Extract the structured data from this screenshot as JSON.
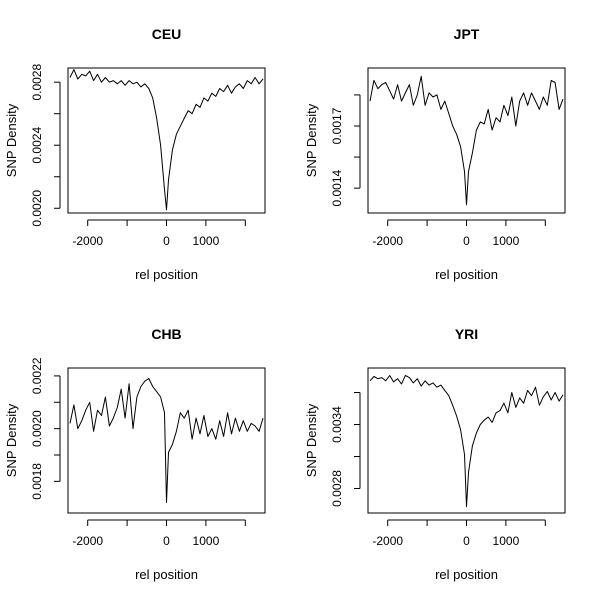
{
  "chart_data": [
    {
      "type": "line",
      "title": "CEU",
      "xlabel": "rel position",
      "ylabel": "SNP Density",
      "xlim": [
        -2500,
        2500
      ],
      "ylim": [
        0.00197,
        0.00289
      ],
      "xticks": [
        -2000,
        -1000,
        0,
        1000,
        2000
      ],
      "xtick_labels": [
        "-2000",
        "",
        "0",
        "1000",
        ""
      ],
      "yticks": [
        0.002,
        0.0022,
        0.0024,
        0.0026,
        0.0028
      ],
      "ytick_labels": [
        "0.0020",
        "",
        "0.0024",
        "",
        "0.0028"
      ],
      "grid": false,
      "legend": "none",
      "series": [
        {
          "x": [
            -2450,
            -2350,
            -2250,
            -2150,
            -2050,
            -1950,
            -1850,
            -1750,
            -1650,
            -1550,
            -1450,
            -1350,
            -1250,
            -1150,
            -1050,
            -950,
            -850,
            -750,
            -650,
            -550,
            -450,
            -350,
            -250,
            -150,
            -50,
            0,
            50,
            150,
            250,
            350,
            450,
            550,
            650,
            750,
            850,
            950,
            1050,
            1150,
            1250,
            1350,
            1450,
            1550,
            1650,
            1750,
            1850,
            1950,
            2050,
            2150,
            2250,
            2350,
            2450
          ],
          "y": [
            0.00283,
            0.00288,
            0.00282,
            0.00285,
            0.00284,
            0.00287,
            0.00281,
            0.00285,
            0.0028,
            0.00283,
            0.0028,
            0.00281,
            0.00279,
            0.00281,
            0.00278,
            0.00281,
            0.00279,
            0.0028,
            0.00277,
            0.00279,
            0.00276,
            0.0027,
            0.00257,
            0.0024,
            0.00212,
            0.00199,
            0.00218,
            0.00237,
            0.00247,
            0.00252,
            0.00257,
            0.00262,
            0.0026,
            0.00266,
            0.00264,
            0.0027,
            0.00268,
            0.00273,
            0.00271,
            0.00276,
            0.00274,
            0.00278,
            0.00273,
            0.00277,
            0.00279,
            0.00276,
            0.00281,
            0.00279,
            0.00283,
            0.00279,
            0.00282
          ]
        }
      ]
    },
    {
      "type": "line",
      "title": "JPT",
      "xlabel": "rel position",
      "ylabel": "SNP Density",
      "xlim": [
        -2500,
        2500
      ],
      "ylim": [
        0.00128,
        0.00198
      ],
      "xticks": [
        -2000,
        -1000,
        0,
        1000,
        2000
      ],
      "xtick_labels": [
        "-2000",
        "",
        "0",
        "1000",
        ""
      ],
      "yticks": [
        0.0014,
        0.00155,
        0.0017,
        0.00185
      ],
      "ytick_labels": [
        "0.0014",
        "",
        "0.0017",
        ""
      ],
      "grid": false,
      "legend": "none",
      "series": [
        {
          "x": [
            -2450,
            -2350,
            -2250,
            -2150,
            -2050,
            -1950,
            -1850,
            -1750,
            -1650,
            -1550,
            -1450,
            -1350,
            -1250,
            -1150,
            -1050,
            -950,
            -850,
            -750,
            -650,
            -550,
            -450,
            -350,
            -250,
            -150,
            -50,
            0,
            50,
            150,
            250,
            350,
            450,
            550,
            650,
            750,
            850,
            950,
            1050,
            1150,
            1250,
            1350,
            1450,
            1550,
            1650,
            1750,
            1850,
            1950,
            2050,
            2150,
            2250,
            2350,
            2450
          ],
          "y": [
            0.00182,
            0.00192,
            0.00188,
            0.0019,
            0.00191,
            0.00187,
            0.00183,
            0.0019,
            0.00182,
            0.00186,
            0.0019,
            0.0018,
            0.00185,
            0.00194,
            0.0018,
            0.00186,
            0.00184,
            0.00185,
            0.00178,
            0.00182,
            0.00176,
            0.0017,
            0.00166,
            0.0016,
            0.00148,
            0.00132,
            0.00148,
            0.00157,
            0.00168,
            0.00172,
            0.00171,
            0.00178,
            0.00168,
            0.00174,
            0.00172,
            0.0018,
            0.00175,
            0.00184,
            0.0017,
            0.00182,
            0.00186,
            0.0018,
            0.00186,
            0.00182,
            0.00178,
            0.00184,
            0.0018,
            0.00192,
            0.00191,
            0.00178,
            0.00183
          ]
        }
      ]
    },
    {
      "type": "line",
      "title": "CHB",
      "xlabel": "rel position",
      "ylabel": "SNP Density",
      "xlim": [
        -2500,
        2500
      ],
      "ylim": [
        0.00168,
        0.00223
      ],
      "xticks": [
        -2000,
        -1000,
        0,
        1000,
        2000
      ],
      "xtick_labels": [
        "-2000",
        "",
        "0",
        "1000",
        ""
      ],
      "yticks": [
        0.0018,
        0.0019,
        0.002,
        0.0021,
        0.0022
      ],
      "ytick_labels": [
        "0.0018",
        "",
        "0.0020",
        "",
        "0.0022"
      ],
      "grid": false,
      "legend": "none",
      "series": [
        {
          "x": [
            -2450,
            -2350,
            -2250,
            -2150,
            -2050,
            -1950,
            -1850,
            -1750,
            -1650,
            -1550,
            -1450,
            -1350,
            -1250,
            -1150,
            -1050,
            -950,
            -850,
            -750,
            -650,
            -550,
            -450,
            -350,
            -250,
            -150,
            -50,
            0,
            50,
            150,
            250,
            350,
            450,
            550,
            650,
            750,
            850,
            950,
            1050,
            1150,
            1250,
            1350,
            1450,
            1550,
            1650,
            1750,
            1850,
            1950,
            2050,
            2150,
            2250,
            2350,
            2450
          ],
          "y": [
            0.00202,
            0.00209,
            0.002,
            0.00203,
            0.00207,
            0.0021,
            0.00199,
            0.00207,
            0.00205,
            0.00212,
            0.00201,
            0.00204,
            0.00208,
            0.00215,
            0.00204,
            0.00217,
            0.002,
            0.00212,
            0.00216,
            0.00218,
            0.00219,
            0.00216,
            0.00214,
            0.00212,
            0.00206,
            0.00172,
            0.00191,
            0.00194,
            0.00199,
            0.00206,
            0.00204,
            0.00207,
            0.00196,
            0.00204,
            0.00198,
            0.00205,
            0.00197,
            0.002,
            0.00196,
            0.00203,
            0.00197,
            0.00206,
            0.00198,
            0.00204,
            0.00199,
            0.00203,
            0.00199,
            0.00202,
            0.00201,
            0.00199,
            0.00204
          ]
        }
      ]
    },
    {
      "type": "line",
      "title": "YRI",
      "xlabel": "rel position",
      "ylabel": "SNP Density",
      "xlim": [
        -2500,
        2500
      ],
      "ylim": [
        0.00257,
        0.00393
      ],
      "xticks": [
        -2000,
        -1000,
        0,
        1000,
        2000
      ],
      "xtick_labels": [
        "-2000",
        "",
        "0",
        "1000",
        ""
      ],
      "yticks": [
        0.0028,
        0.0031,
        0.0034,
        0.0037
      ],
      "ytick_labels": [
        "0.0028",
        "",
        "0.0034",
        ""
      ],
      "grid": false,
      "legend": "none",
      "series": [
        {
          "x": [
            -2450,
            -2350,
            -2250,
            -2150,
            -2050,
            -1950,
            -1850,
            -1750,
            -1650,
            -1550,
            -1450,
            -1350,
            -1250,
            -1150,
            -1050,
            -950,
            -850,
            -750,
            -650,
            -550,
            -450,
            -350,
            -250,
            -150,
            -50,
            0,
            50,
            150,
            250,
            350,
            450,
            550,
            650,
            750,
            850,
            950,
            1050,
            1150,
            1250,
            1350,
            1450,
            1550,
            1650,
            1750,
            1850,
            1950,
            2050,
            2150,
            2250,
            2350,
            2450
          ],
          "y": [
            0.00381,
            0.00385,
            0.00383,
            0.00384,
            0.00381,
            0.00386,
            0.0038,
            0.00383,
            0.00378,
            0.00386,
            0.00384,
            0.00379,
            0.00383,
            0.00376,
            0.00381,
            0.00377,
            0.00379,
            0.00375,
            0.00377,
            0.00372,
            0.00367,
            0.00358,
            0.00348,
            0.00335,
            0.00312,
            0.00263,
            0.00295,
            0.0032,
            0.00332,
            0.0034,
            0.00344,
            0.00347,
            0.00342,
            0.00351,
            0.00353,
            0.0036,
            0.00351,
            0.0037,
            0.00356,
            0.00365,
            0.0036,
            0.00372,
            0.00367,
            0.00375,
            0.00358,
            0.00366,
            0.00371,
            0.00363,
            0.0037,
            0.00362,
            0.00368
          ]
        }
      ]
    }
  ]
}
